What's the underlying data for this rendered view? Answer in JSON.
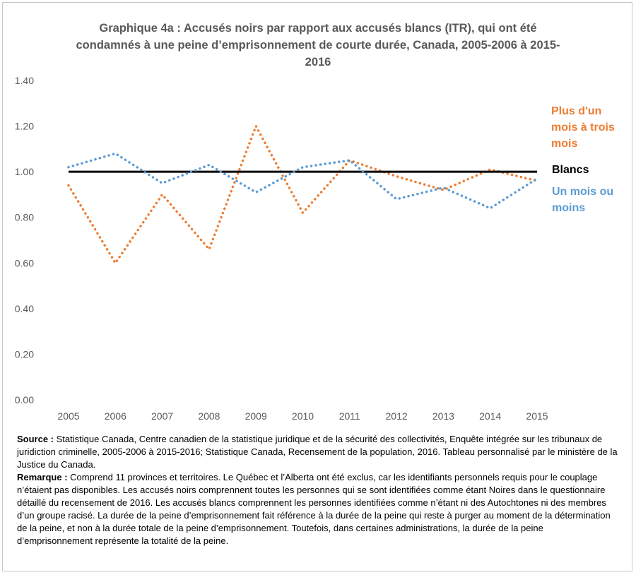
{
  "chart_data": {
    "type": "line",
    "title": "Graphique 4a : Accusés noirs par rapport aux accusés blancs (ITR), qui ont été condamnés à une peine d’emprisonnement de courte durée, Canada, 2005-2006 à 2015-2016",
    "x": [
      "2005",
      "2006",
      "2007",
      "2008",
      "2009",
      "2010",
      "2011",
      "2012",
      "2013",
      "2014",
      "2015"
    ],
    "yticks": [
      "0.00",
      "0.20",
      "0.40",
      "0.60",
      "0.80",
      "1.00",
      "1.20",
      "1.40"
    ],
    "ylim": [
      0,
      1.4
    ],
    "grid": false,
    "legend": "right",
    "series": [
      {
        "name": "Plus d'un mois à trois mois",
        "color": "#ed7d31",
        "style": "dotted",
        "values": [
          0.94,
          0.6,
          0.9,
          0.66,
          1.2,
          0.82,
          1.05,
          0.98,
          0.92,
          1.01,
          0.96
        ]
      },
      {
        "name": "Blancs",
        "color": "#000000",
        "style": "solid",
        "values": [
          1.0,
          1.0,
          1.0,
          1.0,
          1.0,
          1.0,
          1.0,
          1.0,
          1.0,
          1.0,
          1.0
        ]
      },
      {
        "name": "Un mois ou moins",
        "color": "#5b9bd5",
        "style": "dotted",
        "values": [
          1.02,
          1.08,
          0.95,
          1.03,
          0.91,
          1.02,
          1.05,
          0.88,
          0.93,
          0.84,
          0.97
        ]
      }
    ]
  },
  "labels": {
    "orange": "Plus d'un mois à trois mois",
    "black": "Blancs",
    "blue": "Un mois ou moins"
  },
  "notes": {
    "source_label": "Source :",
    "source_text": " Statistique Canada, Centre canadien de la statistique juridique et de la sécurité des collectivités, Enquête intégrée sur les tribunaux de juridiction criminelle, 2005-2006 à 2015-2016; Statistique Canada, Recensement de la population, 2016. Tableau personnalisé par le ministère de la Justice du Canada.",
    "remark_label": "Remarque :",
    "remark_text": " Comprend 11 provinces et territoires. Le Québec et l’Alberta ont été exclus, car les identifiants personnels requis pour le couplage n’étaient pas disponibles. Les accusés noirs comprennent toutes les personnes qui se sont identifiées comme étant Noires dans le questionnaire détaillé du recensement de 2016. Les accusés blancs comprennent les personnes identifiées comme n’étant ni des Autochtones ni des membres d’un groupe racisé. La durée de la peine d’emprisonnement fait référence à la durée de la peine qui reste à purger au moment de la détermination de la peine, et non à la durée totale de la peine d’emprisonnement. Toutefois, dans certaines administrations, la durée de la peine d’emprisonnement représente la totalité de la peine."
  }
}
